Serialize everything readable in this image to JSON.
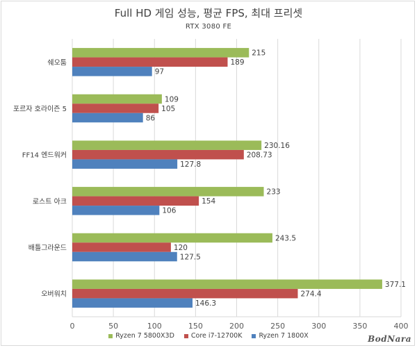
{
  "chart_data": {
    "type": "bar",
    "orientation": "horizontal",
    "title": "Full HD 게임 성능, 평균 FPS, 최대 프리셋",
    "subtitle": "RTX 3080 FE",
    "categories": [
      "쉐오툼",
      "포르자 호라이즌 5",
      "FF14 엔드워커",
      "로스트 아크",
      "배틀그라운드",
      "오버워치"
    ],
    "series": [
      {
        "name": "Ryzen 7 5800X3D",
        "color": "#9bbb59",
        "values": [
          215,
          109,
          230.16,
          233,
          243.5,
          377.1
        ]
      },
      {
        "name": "Core i7-12700K",
        "color": "#c0504d",
        "values": [
          189,
          105,
          208.73,
          154,
          120,
          274.4
        ]
      },
      {
        "name": "Ryzen 7 1800X",
        "color": "#4f81bd",
        "values": [
          97,
          86,
          127.8,
          106,
          127.5,
          146.3
        ]
      }
    ],
    "value_labels": [
      [
        "215",
        "109",
        "230.16",
        "233",
        "243.5",
        "377.1"
      ],
      [
        "189",
        "105",
        "208.73",
        "154",
        "120",
        "274.4"
      ],
      [
        "97",
        "86",
        "127.8",
        "106",
        "127.5",
        "146.3"
      ]
    ],
    "xlim": [
      0,
      400
    ],
    "xticks": [
      0,
      50,
      100,
      150,
      200,
      250,
      300,
      350,
      400
    ],
    "grid": true,
    "legend_position": "bottom"
  },
  "watermark": "BodNara"
}
